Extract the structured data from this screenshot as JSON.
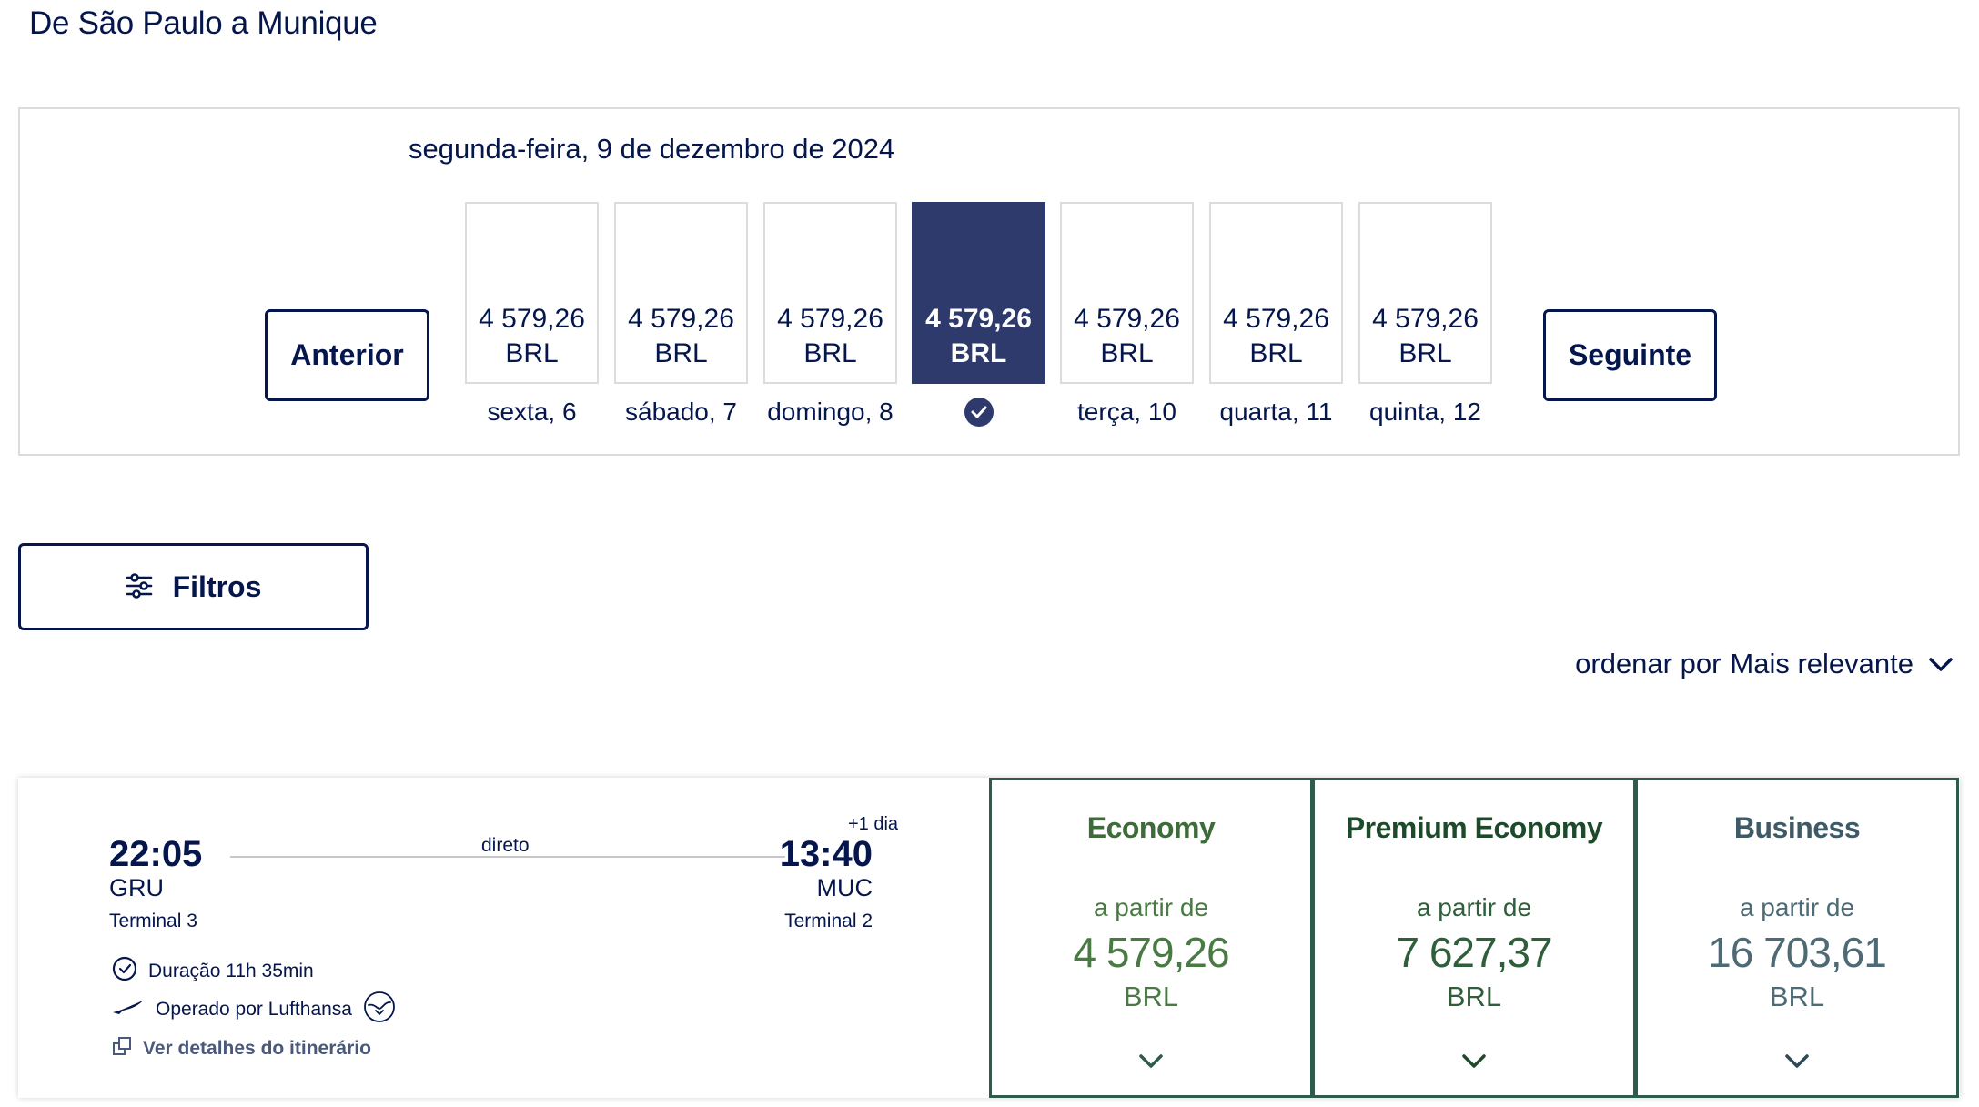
{
  "page": {
    "title": "De São Paulo a Munique"
  },
  "date_selector": {
    "selected_date": "segunda-feira, 9 de dezembro de 2024",
    "prev_label": "Anterior",
    "next_label": "Seguinte",
    "days": [
      {
        "price": "4 579,26",
        "currency": "BRL",
        "label": "sexta, 6",
        "selected": false
      },
      {
        "price": "4 579,26",
        "currency": "BRL",
        "label": "sábado, 7",
        "selected": false
      },
      {
        "price": "4 579,26",
        "currency": "BRL",
        "label": "domingo, 8",
        "selected": false
      },
      {
        "price": "4 579,26",
        "currency": "BRL",
        "label": "",
        "selected": true,
        "icon": "check-circle-icon"
      },
      {
        "price": "4 579,26",
        "currency": "BRL",
        "label": "terça, 10",
        "selected": false
      },
      {
        "price": "4 579,26",
        "currency": "BRL",
        "label": "quarta, 11",
        "selected": false
      },
      {
        "price": "4 579,26",
        "currency": "BRL",
        "label": "quinta, 12",
        "selected": false
      }
    ]
  },
  "filters": {
    "label": "Filtros",
    "icon": "sliders-icon"
  },
  "sort": {
    "prefix": "ordenar por",
    "value": "Mais relevante",
    "icon": "chevron-down-icon"
  },
  "flight": {
    "departure": {
      "time": "22:05",
      "airport": "GRU",
      "terminal": "Terminal 3"
    },
    "arrival": {
      "time": "13:40",
      "airport": "MUC",
      "terminal": "Terminal 2",
      "day_offset": "+1 dia"
    },
    "stops_label": "direto",
    "duration": "Duração 11h 35min",
    "operator": "Operado por Lufthansa",
    "details_link": "Ver detalhes do itinerário",
    "fares": [
      {
        "name": "Economy",
        "from": "a partir de",
        "price": "4 579,26",
        "currency": "BRL",
        "name_color": "#3e6b3a",
        "text_color": "#4a7a44"
      },
      {
        "name": "Premium Economy",
        "from": "a partir de",
        "price": "7 627,37",
        "currency": "BRL",
        "name_color": "#1d4a2a",
        "text_color": "#2f5e3a"
      },
      {
        "name": "Business",
        "from": "a partir de",
        "price": "16 703,61",
        "currency": "BRL",
        "name_color": "#3d5a66",
        "text_color": "#4d6a75"
      }
    ]
  },
  "colors": {
    "brand": "#05164d",
    "selected_day": "#2d3a6b",
    "fare_border": "#2e5b4e"
  }
}
